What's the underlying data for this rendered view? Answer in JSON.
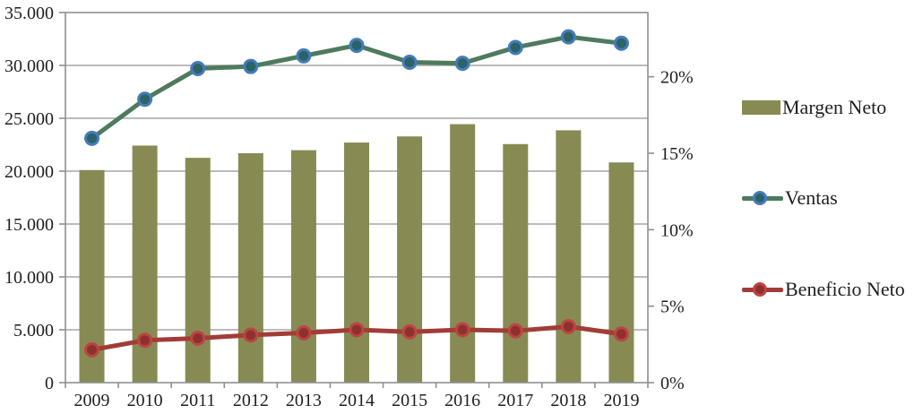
{
  "chart_data": {
    "type": "combo",
    "title": "",
    "categories": [
      "2009",
      "2010",
      "2011",
      "2012",
      "2013",
      "2014",
      "2015",
      "2016",
      "2017",
      "2018",
      "2019"
    ],
    "series": [
      {
        "name": "Margen Neto",
        "type": "bar",
        "axis": "right",
        "unit": "%",
        "color": "#878B53",
        "values": [
          13.9,
          15.5,
          14.7,
          15.0,
          15.2,
          15.7,
          16.1,
          16.9,
          15.6,
          16.5,
          14.4
        ]
      },
      {
        "name": "Ventas",
        "type": "line",
        "axis": "left",
        "color": "#4E7A5E",
        "marker_fill": "#2B6366",
        "marker_stroke": "#447CBB",
        "values": [
          23100,
          26800,
          29700,
          29900,
          30900,
          31900,
          30300,
          30200,
          31700,
          32700,
          32100
        ]
      },
      {
        "name": "Beneficio Neto",
        "type": "line",
        "axis": "left",
        "color": "#A23C36",
        "marker_fill": "#8E312E",
        "marker_stroke": "#BC4542",
        "values": [
          3100,
          4000,
          4200,
          4500,
          4700,
          5000,
          4800,
          5000,
          4900,
          5300,
          4600
        ]
      }
    ],
    "left_axis": {
      "min": 0,
      "max": 35000,
      "tick_values": [
        0,
        5000,
        10000,
        15000,
        20000,
        25000,
        30000,
        35000
      ],
      "tick_labels": [
        "0",
        "5.000",
        "10.000",
        "15.000",
        "20.000",
        "25.000",
        "30.000",
        "35.000"
      ]
    },
    "right_axis": {
      "min": 0,
      "max": 24.2,
      "tick_values": [
        0,
        5,
        10,
        15,
        20
      ],
      "tick_labels": [
        "0%",
        "5%",
        "10%",
        "15%",
        "20%"
      ]
    },
    "grid": true,
    "legend_position": "right"
  },
  "style": {
    "grid_color": "#A6A6A6",
    "border_color": "#8F8F8F",
    "tick_color": "#8F8F8F",
    "text_color": "#1F1F1F",
    "background": "#FFFFFF"
  }
}
